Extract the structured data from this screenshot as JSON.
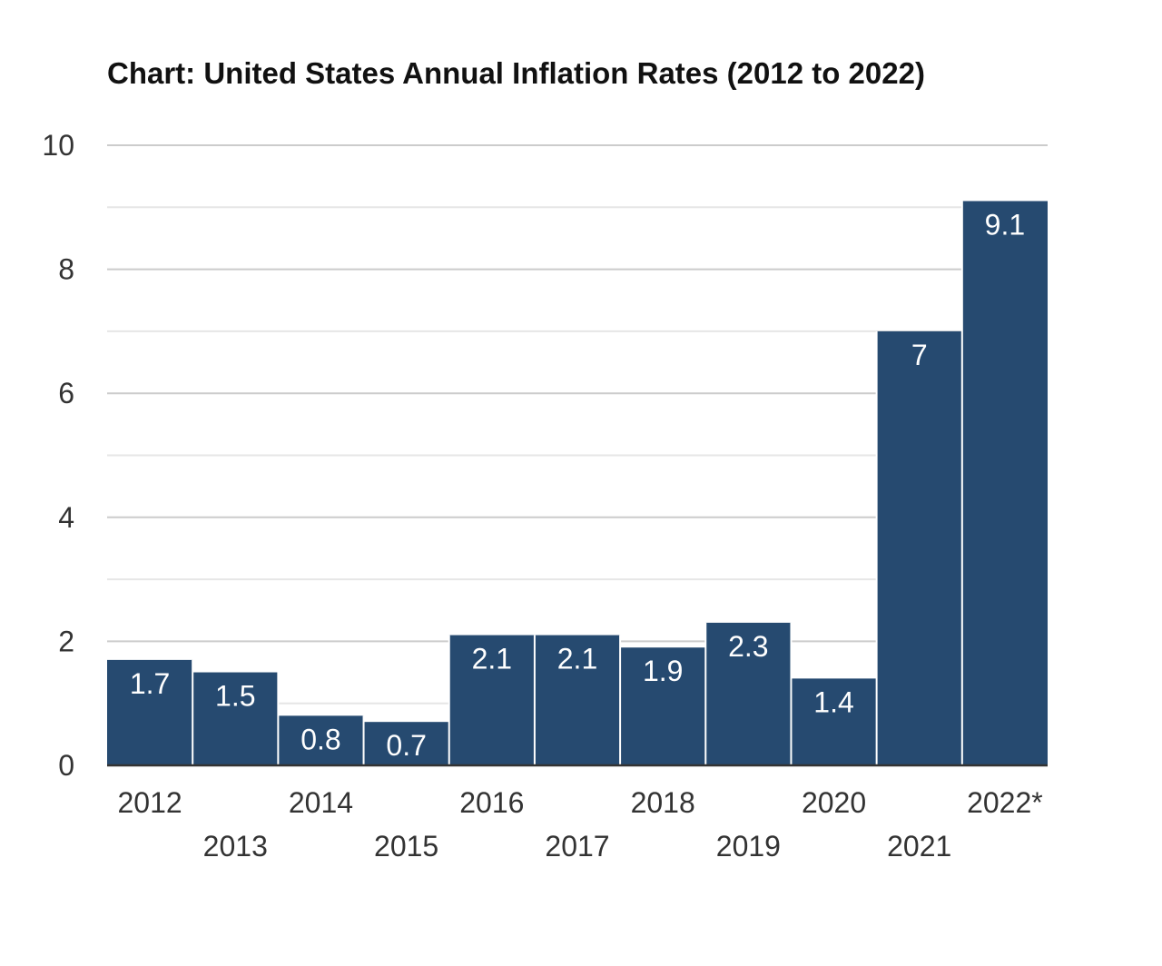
{
  "chart_data": {
    "type": "bar",
    "title": "Chart: United States Annual Inflation Rates (2012 to 2022)",
    "xlabel": "",
    "ylabel": "",
    "categories": [
      "2012",
      "2013",
      "2014",
      "2015",
      "2016",
      "2017",
      "2018",
      "2019",
      "2020",
      "2021",
      "2022*"
    ],
    "values": [
      1.7,
      1.5,
      0.8,
      0.7,
      2.1,
      2.1,
      1.9,
      2.3,
      1.4,
      7,
      9.1
    ],
    "data_labels": [
      "1.7",
      "1.5",
      "0.8",
      "0.7",
      "2.1",
      "2.1",
      "1.9",
      "2.3",
      "1.4",
      "7",
      "9.1"
    ],
    "ylim": [
      0,
      10
    ],
    "y_ticks": [
      0,
      2,
      4,
      6,
      8,
      10
    ],
    "minor_gridlines": [
      1,
      3,
      5,
      7,
      9
    ],
    "grid": true,
    "legend": "none",
    "colors": {
      "bar": "#264a70",
      "bar_separator": "#ffffff",
      "major_grid": "#cccccc",
      "minor_grid": "#e6e6e6",
      "baseline": "#333333"
    }
  }
}
